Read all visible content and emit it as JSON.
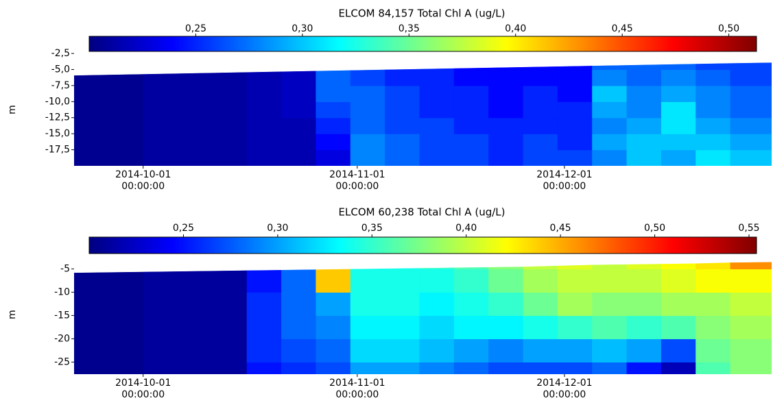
{
  "chart_data": [
    {
      "type": "heatmap",
      "title": "ELCOM 84,157 Total Chl A (ug/L)",
      "ylabel": "m",
      "colormap": "jet",
      "clim": [
        0.2,
        0.513
      ],
      "cticks": [
        {
          "value": 0.25,
          "label": "0,25"
        },
        {
          "value": 0.3,
          "label": "0,30"
        },
        {
          "value": 0.35,
          "label": "0,35"
        },
        {
          "value": 0.4,
          "label": "0,40"
        },
        {
          "value": 0.45,
          "label": "0,45"
        },
        {
          "value": 0.5,
          "label": "0,50"
        }
      ],
      "xlim": [
        "2014-09-21",
        "2014-12-31"
      ],
      "xticks": [
        {
          "value": "2014-10-01",
          "label": "2014-10-01\n00:00:00"
        },
        {
          "value": "2014-11-01",
          "label": "2014-11-01\n00:00:00"
        },
        {
          "value": "2014-12-01",
          "label": "2014-12-01\n00:00:00"
        }
      ],
      "ylim": [
        -20,
        -2.5
      ],
      "yticks": [
        {
          "value": -2.5,
          "label": "-2,5"
        },
        {
          "value": -5,
          "label": "-5,0"
        },
        {
          "value": -7.5,
          "label": "-7,5"
        },
        {
          "value": -10,
          "label": "-10,0"
        },
        {
          "value": -12.5,
          "label": "-12,5"
        },
        {
          "value": -15,
          "label": "-15,0"
        },
        {
          "value": -17.5,
          "label": "-17,5"
        }
      ],
      "x": [
        "2014-09-21",
        "2014-09-26",
        "2014-10-01",
        "2014-10-06",
        "2014-10-11",
        "2014-10-16",
        "2014-10-21",
        "2014-10-26",
        "2014-10-31",
        "2014-11-05",
        "2014-11-10",
        "2014-11-15",
        "2014-11-20",
        "2014-11-25",
        "2014-11-30",
        "2014-12-05",
        "2014-12-10",
        "2014-12-15",
        "2014-12-20",
        "2014-12-25",
        "2014-12-31"
      ],
      "surface": [
        -5.9,
        -5.8,
        -5.7,
        -5.6,
        -5.5,
        -5.4,
        -5.3,
        -5.2,
        -5.1,
        -5.0,
        -4.9,
        -4.8,
        -4.7,
        -4.6,
        -4.5,
        -4.4,
        -4.3,
        -4.2,
        -4.1,
        -4.0,
        -3.9
      ],
      "y": [
        -20,
        -17.5,
        -15,
        -12.5,
        -10,
        -7.5,
        -5,
        -2.5
      ],
      "z": [
        [
          0.205,
          0.205,
          0.21,
          0.21,
          0.21,
          0.215,
          0.215,
          0.23,
          0.28,
          0.27,
          0.26,
          0.26,
          0.25,
          0.26,
          0.26,
          0.28,
          0.3,
          0.29,
          0.31,
          0.3
        ],
        [
          0.205,
          0.205,
          0.21,
          0.21,
          0.21,
          0.215,
          0.215,
          0.24,
          0.28,
          0.27,
          0.26,
          0.26,
          0.25,
          0.26,
          0.25,
          0.29,
          0.3,
          0.3,
          0.3,
          0.29
        ],
        [
          0.205,
          0.205,
          0.21,
          0.21,
          0.21,
          0.215,
          0.215,
          0.25,
          0.27,
          0.26,
          0.26,
          0.25,
          0.25,
          0.25,
          0.25,
          0.28,
          0.29,
          0.31,
          0.29,
          0.28
        ],
        [
          0.205,
          0.205,
          0.21,
          0.21,
          0.21,
          0.215,
          0.22,
          0.26,
          0.27,
          0.26,
          0.25,
          0.25,
          0.24,
          0.25,
          0.25,
          0.29,
          0.28,
          0.31,
          0.28,
          0.27
        ],
        [
          0.205,
          0.205,
          0.21,
          0.21,
          0.21,
          0.215,
          0.22,
          0.27,
          0.27,
          0.26,
          0.25,
          0.25,
          0.24,
          0.25,
          0.24,
          0.3,
          0.28,
          0.29,
          0.28,
          0.27
        ],
        [
          0.205,
          0.205,
          0.21,
          0.21,
          0.21,
          0.215,
          0.22,
          0.27,
          0.26,
          0.25,
          0.25,
          0.24,
          0.24,
          0.24,
          0.24,
          0.28,
          0.27,
          0.28,
          0.27,
          0.26
        ],
        [
          null,
          null,
          null,
          null,
          null,
          null,
          null,
          null,
          null,
          0.25,
          0.25,
          0.24,
          0.24,
          0.24,
          0.24,
          0.27,
          0.27,
          0.27,
          0.26,
          0.26
        ]
      ]
    },
    {
      "type": "heatmap",
      "title": "ELCOM 60,238 Total Chl A (ug/L)",
      "ylabel": "m",
      "colormap": "jet",
      "clim": [
        0.2,
        0.554
      ],
      "cticks": [
        {
          "value": 0.25,
          "label": "0,25"
        },
        {
          "value": 0.3,
          "label": "0,30"
        },
        {
          "value": 0.35,
          "label": "0,35"
        },
        {
          "value": 0.4,
          "label": "0,40"
        },
        {
          "value": 0.45,
          "label": "0,45"
        },
        {
          "value": 0.5,
          "label": "0,50"
        },
        {
          "value": 0.55,
          "label": "0,55"
        }
      ],
      "xlim": [
        "2014-09-21",
        "2014-12-31"
      ],
      "xticks": [
        {
          "value": "2014-10-01",
          "label": "2014-10-01\n00:00:00"
        },
        {
          "value": "2014-11-01",
          "label": "2014-11-01\n00:00:00"
        },
        {
          "value": "2014-12-01",
          "label": "2014-12-01\n00:00:00"
        }
      ],
      "ylim": [
        -27.6,
        -2
      ],
      "yticks": [
        -5,
        -10,
        -15,
        -20,
        -25
      ],
      "x": [
        "2014-09-21",
        "2014-09-26",
        "2014-10-01",
        "2014-10-06",
        "2014-10-11",
        "2014-10-16",
        "2014-10-21",
        "2014-10-26",
        "2014-10-31",
        "2014-11-05",
        "2014-11-10",
        "2014-11-15",
        "2014-11-20",
        "2014-11-25",
        "2014-11-30",
        "2014-12-05",
        "2014-12-10",
        "2014-12-15",
        "2014-12-20",
        "2014-12-25",
        "2014-12-31"
      ],
      "surface": [
        -5.8,
        -5.7,
        -5.6,
        -5.5,
        -5.4,
        -5.3,
        -5.2,
        -5.1,
        -5.0,
        -4.9,
        -4.8,
        -4.7,
        -4.6,
        -4.5,
        -4.3,
        -4.1,
        -4.0,
        -3.9,
        -3.8,
        -3.6,
        -3.5
      ],
      "y": [
        -27.6,
        -25,
        -20,
        -15,
        -10,
        -5,
        -2
      ],
      "z": [
        [
          0.205,
          0.205,
          0.21,
          0.21,
          0.21,
          0.25,
          0.26,
          0.27,
          0.3,
          0.3,
          0.29,
          0.28,
          0.27,
          0.27,
          0.27,
          0.28,
          0.25,
          0.22,
          0.36,
          0.38
        ],
        [
          0.205,
          0.205,
          0.21,
          0.21,
          0.21,
          0.26,
          0.27,
          0.28,
          0.32,
          0.32,
          0.31,
          0.3,
          0.29,
          0.3,
          0.3,
          0.31,
          0.3,
          0.27,
          0.37,
          0.38
        ],
        [
          0.205,
          0.205,
          0.21,
          0.21,
          0.21,
          0.26,
          0.28,
          0.29,
          0.33,
          0.33,
          0.32,
          0.33,
          0.33,
          0.34,
          0.35,
          0.36,
          0.35,
          0.36,
          0.38,
          0.39
        ],
        [
          0.205,
          0.205,
          0.21,
          0.21,
          0.21,
          0.26,
          0.28,
          0.3,
          0.34,
          0.34,
          0.33,
          0.34,
          0.35,
          0.37,
          0.39,
          0.38,
          0.38,
          0.39,
          0.39,
          0.4
        ],
        [
          0.205,
          0.205,
          0.21,
          0.21,
          0.21,
          0.25,
          0.28,
          0.44,
          0.34,
          0.34,
          0.34,
          0.35,
          0.37,
          0.39,
          0.4,
          0.4,
          0.4,
          0.41,
          0.42,
          0.42
        ],
        [
          null,
          null,
          null,
          null,
          null,
          null,
          null,
          null,
          0.34,
          0.34,
          0.35,
          0.36,
          0.38,
          0.4,
          0.41,
          0.4,
          0.41,
          0.42,
          0.43,
          0.46
        ]
      ]
    }
  ]
}
